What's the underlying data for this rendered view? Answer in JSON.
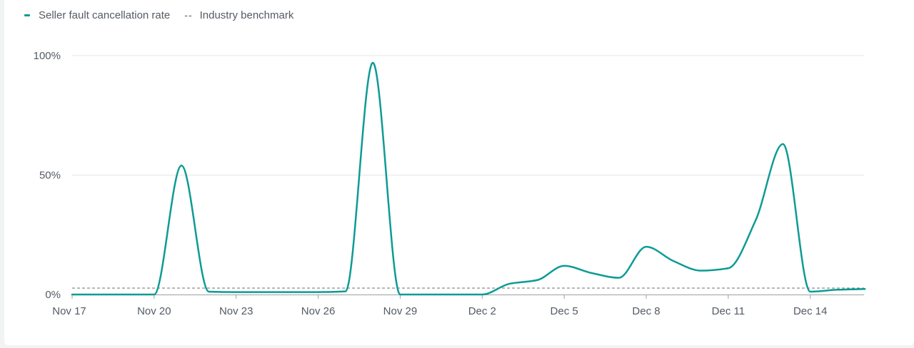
{
  "legend": {
    "series_label": "Seller fault cancellation rate",
    "benchmark_label": "Industry benchmark",
    "benchmark_marker": "--"
  },
  "colors": {
    "series": "#0d9b95",
    "benchmark": "#6f6f6f",
    "grid": "#e3e5e6",
    "axis": "#9ba1a6"
  },
  "chart_data": {
    "type": "line",
    "x": [
      "Nov 17",
      "Nov 18",
      "Nov 19",
      "Nov 20",
      "Nov 21",
      "Nov 22",
      "Nov 23",
      "Nov 24",
      "Nov 25",
      "Nov 26",
      "Nov 27",
      "Nov 28",
      "Nov 29",
      "Nov 30",
      "Dec 1",
      "Dec 2",
      "Dec 3",
      "Dec 4",
      "Dec 5",
      "Dec 6",
      "Dec 7",
      "Dec 8",
      "Dec 9",
      "Dec 10",
      "Dec 11",
      "Dec 12",
      "Dec 13",
      "Dec 14",
      "Dec 15",
      "Dec 16"
    ],
    "x_tick_labels": [
      "Nov 17",
      "Nov 20",
      "Nov 23",
      "Nov 26",
      "Nov 29",
      "Dec 2",
      "Dec 5",
      "Dec 8",
      "Dec 11",
      "Dec 14"
    ],
    "y_tick_labels": [
      "0%",
      "50%",
      "100%"
    ],
    "y_ticks": [
      0,
      50,
      100
    ],
    "ylim": [
      0,
      100
    ],
    "series": [
      {
        "name": "Seller fault cancellation rate",
        "values": [
          0,
          0,
          0,
          0,
          54,
          1.2,
          1,
          1,
          1,
          1,
          1.3,
          97,
          0,
          0,
          0,
          0,
          4.5,
          6,
          12,
          9,
          7,
          20,
          14,
          10,
          11,
          31,
          63,
          1.2,
          2,
          2.3
        ]
      }
    ],
    "benchmark": {
      "name": "Industry benchmark",
      "value": 2.7
    },
    "grid": true,
    "legend_position": "top-left"
  }
}
